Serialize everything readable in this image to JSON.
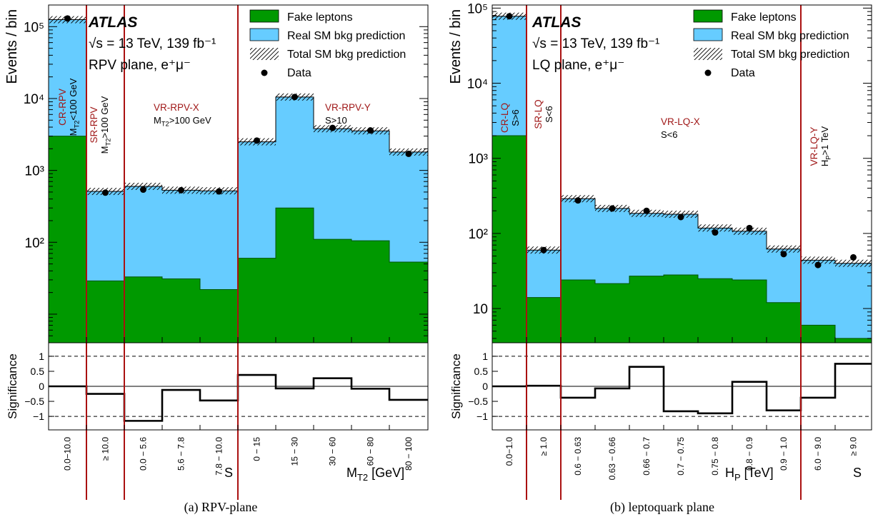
{
  "colors": {
    "fake": "#009900",
    "real": "#66CCFF",
    "region_line": "#AA1111",
    "region_label": "#A01818"
  },
  "captions": {
    "a": "(a) RPV-plane",
    "b": "(b) leptoquark plane"
  },
  "chart_data": [
    {
      "type": "bar",
      "stacked": true,
      "log_y": true,
      "ylabel": "Events / bin",
      "ylim": [
        4,
        200000
      ],
      "yticks": [
        {
          "v": 100,
          "t": "10²"
        },
        {
          "v": 1000,
          "t": "10³"
        },
        {
          "v": 10000,
          "t": "10⁴"
        },
        {
          "v": 100000,
          "t": "10⁵"
        }
      ],
      "atlas": "ATLAS",
      "energy": "√s = 13 TeV, 139 fb⁻¹",
      "plane": "RPV plane, e⁺μ⁻",
      "legend": [
        "Fake leptons",
        "Real SM bkg prediction",
        "Total SM bkg prediction",
        "Data"
      ],
      "categories": [
        "0.0−10.0",
        "≥ 10.0",
        "0.0 − 5.6",
        "5.6 − 7.8",
        "7.8 − 10.0",
        "0 − 15",
        "15 − 30",
        "30 − 60",
        "60 − 80",
        "80 − 100"
      ],
      "series": [
        {
          "name": "Fake leptons",
          "values": [
            3000,
            29,
            33,
            31,
            22,
            60,
            300,
            110,
            105,
            53
          ]
        },
        {
          "name": "Total SM bkg prediction",
          "values": [
            125000,
            510,
            600,
            530,
            520,
            2500,
            10500,
            3800,
            3550,
            1800
          ]
        },
        {
          "name": "Data",
          "values": [
            130000,
            490,
            540,
            530,
            510,
            2600,
            10500,
            3900,
            3600,
            1700
          ]
        }
      ],
      "significance": {
        "ylabel": "Significance",
        "ticks": [
          "1",
          "0.5",
          "0",
          "−0.5",
          "−1"
        ],
        "values": [
          0,
          -0.25,
          -1.15,
          -0.12,
          -0.47,
          0.38,
          -0.07,
          0.27,
          -0.08,
          -0.45
        ]
      },
      "regions": [
        {
          "name": "CR-RPV",
          "cut": "M_T2<100 GeV",
          "vertical": true
        },
        {
          "name": "SR-RPV",
          "cut": "M_T2>100 GeV",
          "vertical": true
        },
        {
          "name": "VR-RPV-X",
          "cut": "M_T2>100 GeV",
          "vertical": false
        },
        {
          "name": "VR-RPV-Y",
          "cut": "S>10",
          "vertical": false
        }
      ],
      "xaxis_labels": [
        "S",
        "M_T2 [GeV]"
      ]
    },
    {
      "type": "bar",
      "stacked": true,
      "log_y": true,
      "ylabel": "Events / bin",
      "ylim": [
        3.5,
        110000
      ],
      "yticks": [
        {
          "v": 10,
          "t": "10"
        },
        {
          "v": 100,
          "t": "10²"
        },
        {
          "v": 1000,
          "t": "10³"
        },
        {
          "v": 10000,
          "t": "10⁴"
        },
        {
          "v": 100000,
          "t": "10⁵"
        }
      ],
      "atlas": "ATLAS",
      "energy": "√s = 13 TeV, 139 fb⁻¹",
      "plane": "LQ plane, e⁺μ⁻",
      "legend": [
        "Fake leptons",
        "Real SM bkg prediction",
        "Total SM bkg prediction",
        "Data"
      ],
      "categories": [
        "0.0−1.0",
        "≥ 1.0",
        "0.6 − 0.63",
        "0.63 − 0.66",
        "0.66 − 0.7",
        "0.7 − 0.75",
        "0.75 − 0.8",
        "0.8 − 0.9",
        "0.9 − 1.0",
        "6.0 − 9.0",
        "≥ 9.0"
      ],
      "series": [
        {
          "name": "Fake leptons",
          "values": [
            2000,
            14,
            24,
            21.5,
            27,
            28,
            25,
            24,
            12,
            6,
            4
          ]
        },
        {
          "name": "Total SM bkg prediction",
          "values": [
            78000,
            60,
            290,
            215,
            185,
            180,
            118,
            107,
            62,
            44,
            40
          ]
        },
        {
          "name": "Data",
          "values": [
            78000,
            60,
            275,
            215,
            200,
            165,
            103,
            118,
            53,
            38,
            48
          ]
        }
      ],
      "significance": {
        "ylabel": "Significance",
        "ticks": [
          "1",
          "0.5",
          "0",
          "−0.5",
          "−1"
        ],
        "values": [
          0,
          0.02,
          -0.38,
          -0.07,
          0.65,
          -0.83,
          -0.9,
          0.15,
          -0.8,
          -0.38,
          0.75
        ]
      },
      "regions": [
        {
          "name": "CR-LQ",
          "cut": "S>6",
          "vertical": true
        },
        {
          "name": "SR-LQ",
          "cut": "S<6",
          "vertical": true
        },
        {
          "name": "VR-LQ-X",
          "cut": "S<6",
          "vertical": false
        },
        {
          "name": "VR-LQ-Y",
          "cut": "H_P>1 TeV",
          "vertical": true
        }
      ],
      "xaxis_labels": [
        "H_P [TeV]",
        "S"
      ]
    }
  ]
}
